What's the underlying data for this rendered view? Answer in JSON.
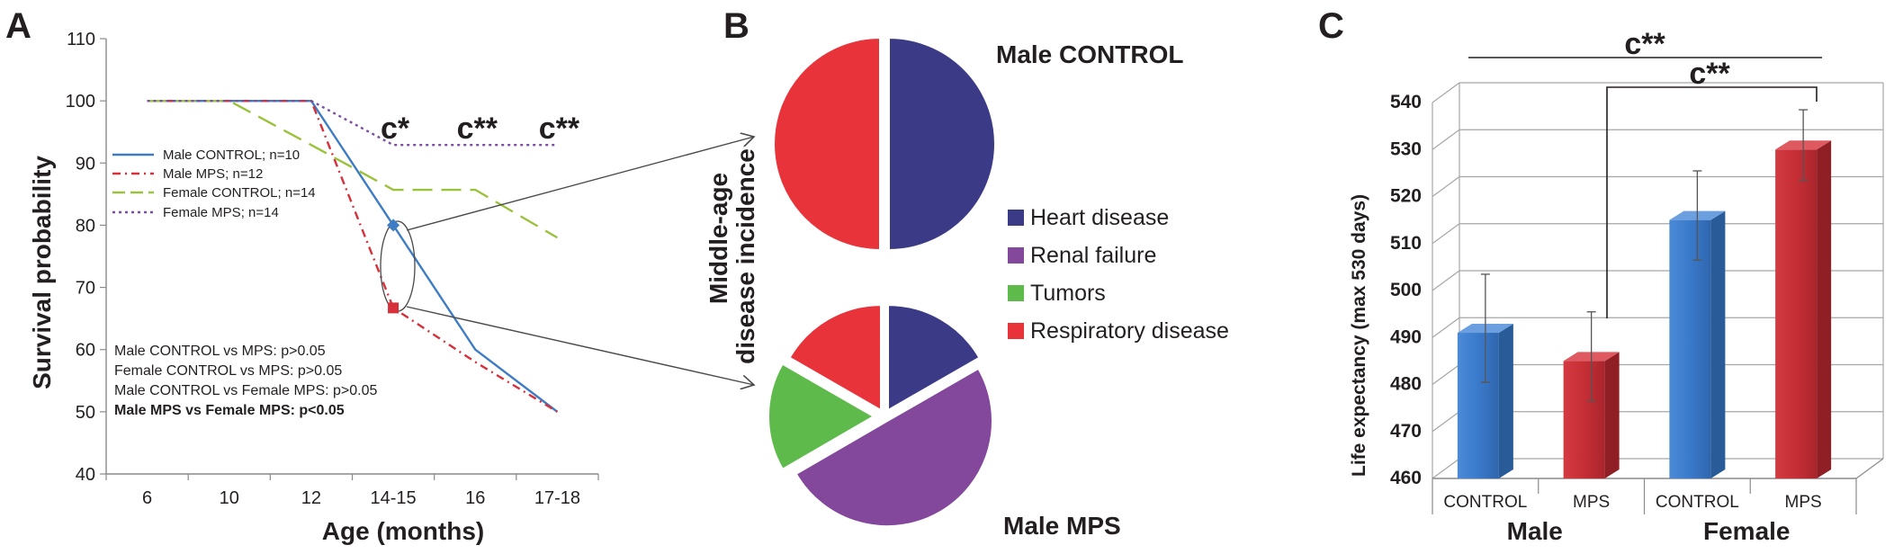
{
  "panels": {
    "a": {
      "letter": "A"
    },
    "b": {
      "letter": "B"
    },
    "c": {
      "letter": "C"
    }
  },
  "chart_data": [
    {
      "type": "line",
      "panel": "A",
      "title": "",
      "xlabel": "Age (months)",
      "ylabel": "Survival probability",
      "ylim": [
        40,
        110
      ],
      "yticks": [
        40,
        50,
        60,
        70,
        80,
        90,
        100,
        110
      ],
      "categories": [
        "6",
        "10",
        "12",
        "14-15",
        "16",
        "17-18"
      ],
      "series": [
        {
          "name": "Male CONTROL; n=10",
          "color": "#3e7cc4",
          "dash": "solid",
          "values": [
            100,
            100,
            100,
            80,
            60,
            50
          ]
        },
        {
          "name": "Male MPS;  n=12",
          "color": "#d6303a",
          "dash": "dashdot",
          "values": [
            100,
            100,
            100,
            66.7,
            58,
            50
          ]
        },
        {
          "name": "Female CONTROL; n=14",
          "color": "#9bc23c",
          "dash": "longdash",
          "values": [
            100,
            100,
            92.9,
            85.7,
            85.7,
            78
          ]
        },
        {
          "name": "Female MPS;  n=14",
          "color": "#7b4fa3",
          "dash": "dot",
          "values": [
            100,
            100,
            100,
            92.9,
            92.9,
            92.9
          ]
        }
      ],
      "significance": [
        {
          "category": "14-15",
          "label": "c*"
        },
        {
          "category": "16",
          "label": "c**"
        },
        {
          "category": "17-18",
          "label": "c**"
        }
      ],
      "highlighted_points": [
        {
          "series": "Male CONTROL; n=10",
          "category": "14-15",
          "value": 80
        },
        {
          "series": "Male MPS;  n=12",
          "category": "14-15",
          "value": 66.7
        }
      ],
      "stats": [
        {
          "text": "Male CONTROL vs MPS: p>0.05",
          "bold": false
        },
        {
          "text": "Female CONTROL vs MPS: p>0.05",
          "bold": false
        },
        {
          "text": "Male CONTROL vs Female MPS: p>0.05",
          "bold": false
        },
        {
          "text": "Male MPS vs Female MPS: p<0.05",
          "bold": true
        }
      ],
      "legend_placement": "left"
    },
    {
      "type": "pie",
      "panel": "B",
      "ylabel_line1": "Middle-age",
      "ylabel_line2": "disease incidence",
      "legend": [
        {
          "label": "Heart disease",
          "color": "#3b3a86"
        },
        {
          "label": "Renal failure",
          "color": "#83479c"
        },
        {
          "label": "Tumors",
          "color": "#5dba4b"
        },
        {
          "label": "Respiratory disease",
          "color": "#e8333b"
        }
      ],
      "pies": [
        {
          "title": "Male CONTROL",
          "slices": [
            {
              "label": "Heart disease",
              "value": 50
            },
            {
              "label": "Respiratory disease",
              "value": 50
            }
          ]
        },
        {
          "title": "Male MPS",
          "slices": [
            {
              "label": "Heart disease",
              "value": 16.7
            },
            {
              "label": "Renal failure",
              "value": 50
            },
            {
              "label": "Tumors",
              "value": 16.7
            },
            {
              "label": "Respiratory disease",
              "value": 16.7
            }
          ]
        }
      ]
    },
    {
      "type": "bar",
      "panel": "C",
      "ylabel": "Life expectancy (max 530 days)",
      "ylim": [
        460,
        540
      ],
      "yticks": [
        460,
        470,
        480,
        490,
        500,
        510,
        520,
        530,
        540
      ],
      "categories": [
        "CONTROL",
        "MPS",
        "CONTROL",
        "MPS"
      ],
      "groups": [
        {
          "label": "Male",
          "span": [
            0,
            1
          ]
        },
        {
          "label": "Female",
          "span": [
            2,
            3
          ]
        }
      ],
      "values": [
        491,
        485,
        515,
        530
      ],
      "errors": [
        11.5,
        9.5,
        9.5,
        7.5
      ],
      "colors": [
        "#3d7cc9",
        "#c73038",
        "#3d7cc9",
        "#c73038"
      ],
      "significance": [
        {
          "from": 0,
          "to": 3,
          "label": "c**"
        },
        {
          "from": 1,
          "to": 3,
          "label": "c**"
        }
      ],
      "grid": true
    }
  ]
}
